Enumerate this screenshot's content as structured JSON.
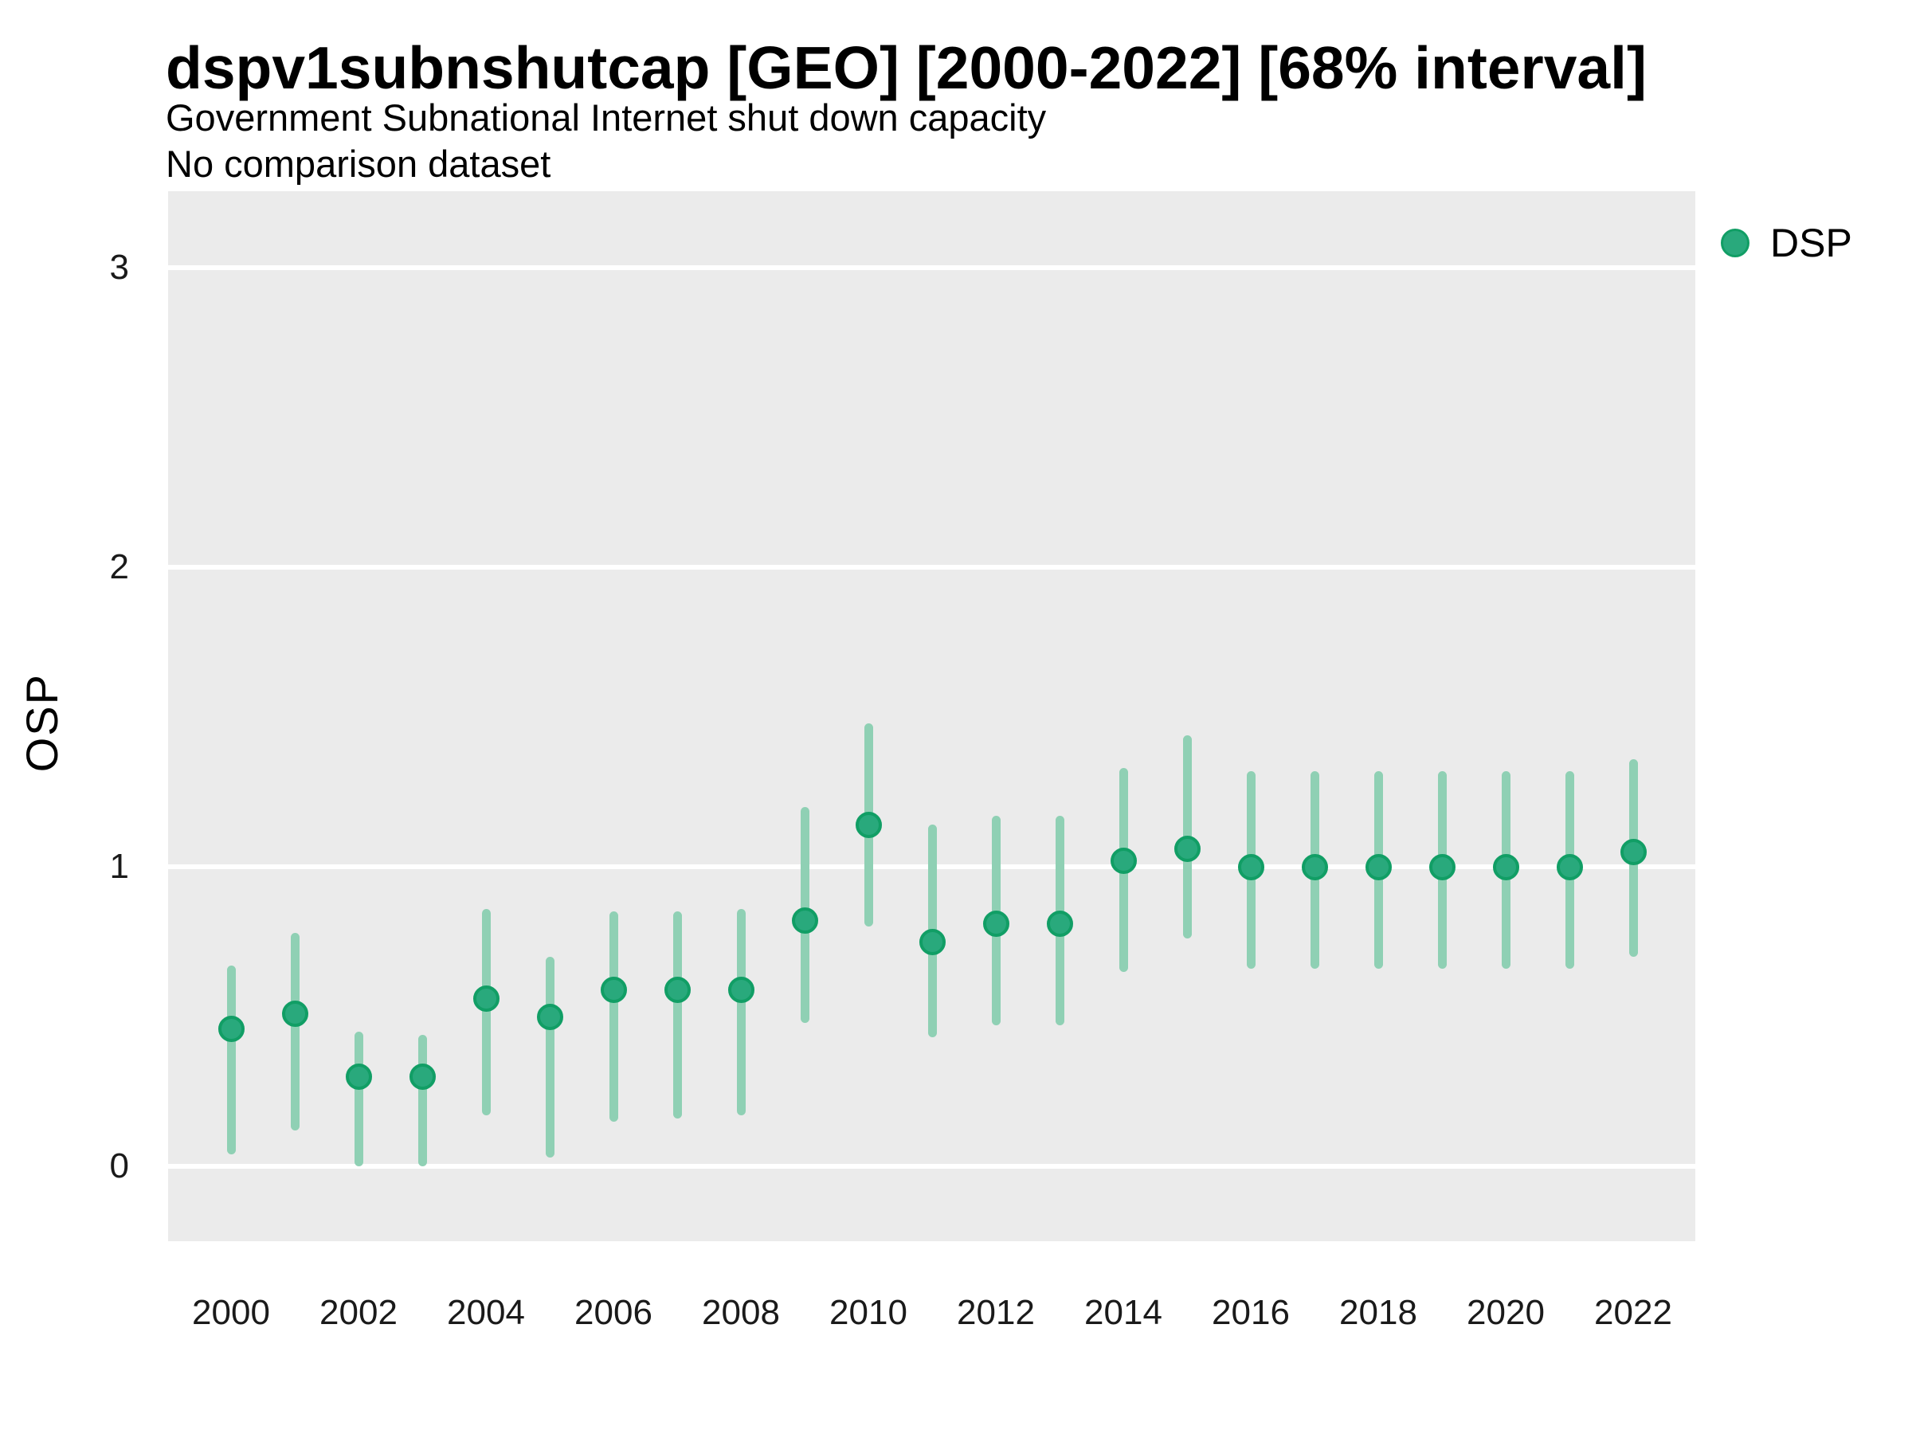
{
  "header": {
    "title": "dspv1subnshutcap [GEO] [2000-2022] [68% interval]",
    "subtitle": "Government Subnational Internet shut down capacity",
    "note": "No comparison dataset"
  },
  "legend": {
    "label": "DSP"
  },
  "colors": {
    "dot_fill": "#29a97c",
    "dot_ring": "#119e65",
    "interval_bar": "#8fd0b4",
    "panel_bg": "#ebebeb",
    "gridline": "#ffffff"
  },
  "chart_data": {
    "type": "scatter",
    "subtype": "pointrange",
    "title": "dspv1subnshutcap [GEO] [2000-2022] [68% interval]",
    "subtitle": "Government Subnational Internet shut down capacity",
    "note": "No comparison dataset",
    "interval": "68%",
    "xlabel": "",
    "ylabel": "OSP",
    "ylim": [
      -0.26,
      3.26
    ],
    "yticks": [
      0,
      1,
      2,
      3
    ],
    "x_tick_years": [
      2000,
      2002,
      2004,
      2006,
      2008,
      2010,
      2012,
      2014,
      2016,
      2018,
      2020,
      2022
    ],
    "x_range_years": [
      2000,
      2022
    ],
    "grid": "horizontal-major-only",
    "legend_position": "right",
    "series": [
      {
        "name": "DSP",
        "points": [
          {
            "year": 2000,
            "value": 0.46,
            "lo": 0.04,
            "hi": 0.67
          },
          {
            "year": 2001,
            "value": 0.51,
            "lo": 0.12,
            "hi": 0.78
          },
          {
            "year": 2002,
            "value": 0.3,
            "lo": 0.0,
            "hi": 0.45
          },
          {
            "year": 2003,
            "value": 0.3,
            "lo": 0.0,
            "hi": 0.44
          },
          {
            "year": 2004,
            "value": 0.56,
            "lo": 0.17,
            "hi": 0.86
          },
          {
            "year": 2005,
            "value": 0.5,
            "lo": 0.03,
            "hi": 0.7
          },
          {
            "year": 2006,
            "value": 0.59,
            "lo": 0.15,
            "hi": 0.85
          },
          {
            "year": 2007,
            "value": 0.59,
            "lo": 0.16,
            "hi": 0.85
          },
          {
            "year": 2008,
            "value": 0.59,
            "lo": 0.17,
            "hi": 0.86
          },
          {
            "year": 2009,
            "value": 0.82,
            "lo": 0.48,
            "hi": 1.2
          },
          {
            "year": 2010,
            "value": 1.14,
            "lo": 0.8,
            "hi": 1.48
          },
          {
            "year": 2011,
            "value": 0.75,
            "lo": 0.43,
            "hi": 1.14
          },
          {
            "year": 2012,
            "value": 0.81,
            "lo": 0.47,
            "hi": 1.17
          },
          {
            "year": 2013,
            "value": 0.81,
            "lo": 0.47,
            "hi": 1.17
          },
          {
            "year": 2014,
            "value": 1.02,
            "lo": 0.65,
            "hi": 1.33
          },
          {
            "year": 2015,
            "value": 1.06,
            "lo": 0.76,
            "hi": 1.44
          },
          {
            "year": 2016,
            "value": 1.0,
            "lo": 0.66,
            "hi": 1.32
          },
          {
            "year": 2017,
            "value": 1.0,
            "lo": 0.66,
            "hi": 1.32
          },
          {
            "year": 2018,
            "value": 1.0,
            "lo": 0.66,
            "hi": 1.32
          },
          {
            "year": 2019,
            "value": 1.0,
            "lo": 0.66,
            "hi": 1.32
          },
          {
            "year": 2020,
            "value": 1.0,
            "lo": 0.66,
            "hi": 1.32
          },
          {
            "year": 2021,
            "value": 1.0,
            "lo": 0.66,
            "hi": 1.32
          },
          {
            "year": 2022,
            "value": 1.05,
            "lo": 0.7,
            "hi": 1.36
          }
        ]
      }
    ]
  }
}
